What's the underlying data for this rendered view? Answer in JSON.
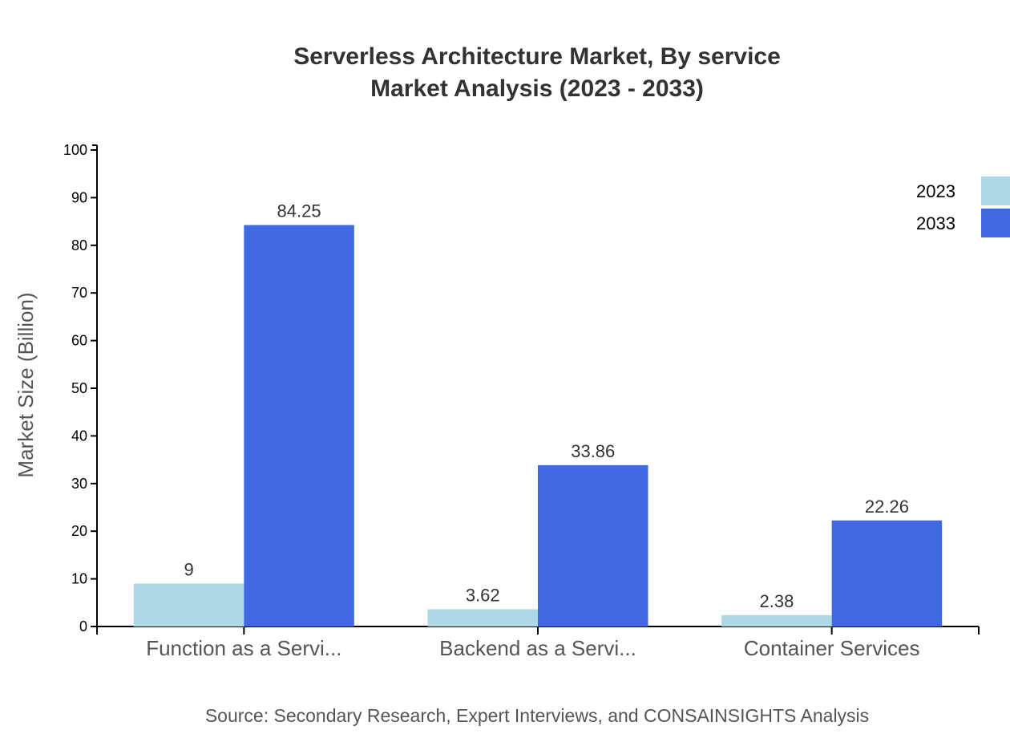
{
  "chart_data": {
    "type": "bar",
    "title": "Serverless Architecture Market, By service",
    "subtitle": "Market Analysis (2023 - 2033)",
    "xlabel": "",
    "ylabel": "Market Size (Billion)",
    "ylim": [
      0,
      100
    ],
    "yticks": [
      0,
      10,
      20,
      30,
      40,
      50,
      60,
      70,
      80,
      90,
      100
    ],
    "categories": [
      "Function as a Servi...",
      "Backend as a Servi...",
      "Container Services"
    ],
    "series": [
      {
        "name": "2023",
        "color": "#add8e6",
        "values": [
          9,
          3.62,
          2.38
        ],
        "labels": [
          "9",
          "3.62",
          "2.38"
        ]
      },
      {
        "name": "2033",
        "color": "#4169e1",
        "values": [
          84.25,
          33.86,
          22.26
        ],
        "labels": [
          "84.25",
          "33.86",
          "22.26"
        ]
      }
    ],
    "legend_position": "top-right",
    "grid": false,
    "source": "Source: Secondary Research, Expert Interviews, and CONSAINSIGHTS Analysis"
  }
}
